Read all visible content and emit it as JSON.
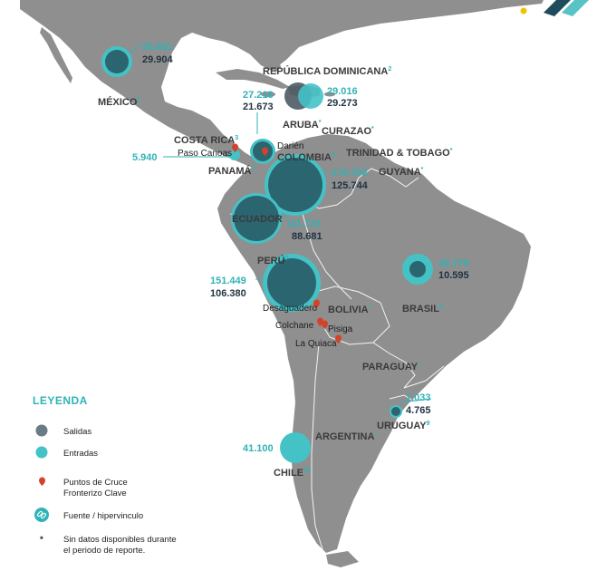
{
  "legend": {
    "title": "LEYENDA",
    "salidas": "Salidas",
    "entradas": "Entradas",
    "cruce_line1": "Puntos de Cruce",
    "cruce_line2": "Fronterizo Clave",
    "fuente": "Fuente / hipervinculo",
    "nodata_line1": "Sin datos disponibles durante",
    "nodata_line2": "el periodo de reporte.",
    "nodata_symbol": "*"
  },
  "colors": {
    "salidas": "#2b6570",
    "entradas": "#45c2c6",
    "land": "#8f8f8f",
    "sea": "#ffffff",
    "marker": "#d2432a",
    "accent": "#2fb3b7"
  },
  "countries": {
    "mexico": {
      "name": "MÉXICO",
      "ref": "1",
      "entradas": "35.851",
      "salidas": "29.904"
    },
    "rep_dominicana": {
      "name": "REPÚBLICA DOMINICANA",
      "ref": "2",
      "entradas": "29.016",
      "salidas": "29.273",
      "pair_left": "27.218",
      "pair_right": "21.673"
    },
    "aruba": {
      "name": "ARUBA",
      "ref": "*"
    },
    "curazao": {
      "name": "CURAZAO",
      "ref": "*"
    },
    "costa_rica": {
      "name": "COSTA RICA",
      "ref": "3",
      "value": "5.940"
    },
    "trinidad": {
      "name": "TRINIDAD & TOBAGO",
      "ref": "*"
    },
    "panama": {
      "name": "PANAMÁ",
      "ref": "4"
    },
    "colombia": {
      "name": "COLOMBIA",
      "ref": "5",
      "entradas": "170.702",
      "salidas": "125.744"
    },
    "guyana": {
      "name": "GUYANA",
      "ref": "*"
    },
    "ecuador": {
      "name": "ECUADOR",
      "ref": "6",
      "entradas": "111.721",
      "salidas": "88.681"
    },
    "peru": {
      "name": "PERÚ",
      "ref": "7",
      "entradas": "151.449",
      "salidas": "106.380"
    },
    "brasil": {
      "name": "BRASIL",
      "ref": "8",
      "entradas": "42.775",
      "salidas": "10.595"
    },
    "bolivia": {
      "name": "BOLIVIA",
      "ref": "*"
    },
    "paraguay": {
      "name": "PARAGUAY",
      "ref": "*"
    },
    "uruguay": {
      "name": "URUGUAY",
      "ref": "9",
      "entradas": "7.033",
      "salidas": "4.765"
    },
    "argentina": {
      "name": "ARGENTINA",
      "ref": "*"
    },
    "chile": {
      "name": "CHILE",
      "ref": "10",
      "value": "41.100"
    }
  },
  "crossing_points": {
    "darien": "Darién",
    "paso_canoas": "Paso Canoas",
    "desaguadero": "Desaguadero",
    "colchane": "Colchane",
    "pisiga": "Pisiga",
    "la_quiaca": "La Quiaca"
  }
}
